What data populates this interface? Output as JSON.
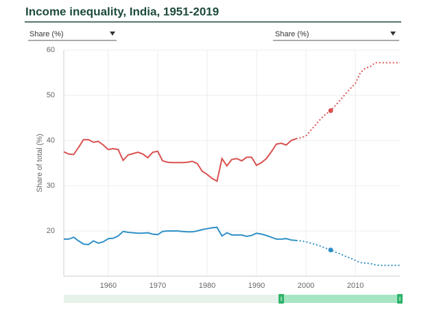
{
  "controls": [
    "Share (%)",
    "Share (%)"
  ],
  "chart_data": {
    "type": "line",
    "title": "Income inequality, India, 1951-2019",
    "y_label": "Share of total (%)",
    "x": [
      1951,
      1952,
      1953,
      1954,
      1955,
      1956,
      1957,
      1958,
      1959,
      1960,
      1961,
      1962,
      1963,
      1964,
      1965,
      1966,
      1967,
      1968,
      1969,
      1970,
      1971,
      1972,
      1973,
      1974,
      1975,
      1976,
      1977,
      1978,
      1979,
      1980,
      1981,
      1982,
      1983,
      1984,
      1985,
      1986,
      1987,
      1988,
      1989,
      1990,
      1991,
      1992,
      1993,
      1994,
      1995,
      1996,
      1997,
      1998,
      1999,
      2000,
      2001,
      2002,
      2003,
      2004,
      2005,
      2006,
      2007,
      2008,
      2009,
      2010,
      2011,
      2012,
      2013,
      2014,
      2015,
      2016,
      2017,
      2018,
      2019
    ],
    "series": [
      {
        "color": "#d9504f",
        "dotted_from": 1998,
        "highlight_x": 2005,
        "values": [
          37.5,
          37.0,
          36.9,
          38.5,
          40.2,
          40.2,
          39.6,
          39.8,
          39.0,
          38.0,
          38.2,
          38.0,
          35.6,
          36.8,
          37.1,
          37.4,
          37.0,
          36.2,
          37.4,
          37.6,
          35.5,
          35.2,
          35.1,
          35.1,
          35.1,
          35.2,
          35.4,
          34.9,
          33.2,
          32.5,
          31.6,
          31.0,
          36.0,
          34.4,
          35.8,
          36.0,
          35.5,
          36.3,
          36.3,
          34.5,
          35.1,
          36.0,
          37.5,
          39.2,
          39.4,
          39.0,
          40.0,
          40.4,
          40.6,
          41.0,
          42.3,
          43.5,
          44.8,
          45.8,
          46.6,
          47.8,
          49.0,
          50.3,
          51.5,
          52.6,
          55.0,
          56.0,
          56.3,
          57.2,
          57.2,
          57.2,
          57.2,
          57.2,
          57.2
        ]
      },
      {
        "color": "#2e8fc6",
        "dotted_from": 1998,
        "highlight_x": 2005,
        "values": [
          18.2,
          18.2,
          18.6,
          17.8,
          17.1,
          17.0,
          17.8,
          17.3,
          17.6,
          18.3,
          18.4,
          18.9,
          19.9,
          19.7,
          19.6,
          19.5,
          19.5,
          19.6,
          19.3,
          19.2,
          19.9,
          20.0,
          20.0,
          20.0,
          19.9,
          19.8,
          19.8,
          20.0,
          20.3,
          20.5,
          20.7,
          20.8,
          18.9,
          19.6,
          19.1,
          19.1,
          19.1,
          18.8,
          19.0,
          19.5,
          19.3,
          19.0,
          18.6,
          18.2,
          18.2,
          18.3,
          18.0,
          17.9,
          17.8,
          17.6,
          17.3,
          17.0,
          16.6,
          16.2,
          15.8,
          15.3,
          14.9,
          14.4,
          14.0,
          13.5,
          13.0,
          12.9,
          12.8,
          12.5,
          12.4,
          12.4,
          12.4,
          12.4,
          12.4
        ]
      }
    ],
    "xlim": [
      1951,
      2019
    ],
    "xticks": [
      1960,
      1970,
      1980,
      1990,
      2000,
      2010
    ],
    "ylim": [
      10,
      60
    ],
    "yticks": [
      20,
      30,
      40,
      50,
      60
    ],
    "grid": true,
    "range_slider": [
      1995,
      2019
    ]
  }
}
